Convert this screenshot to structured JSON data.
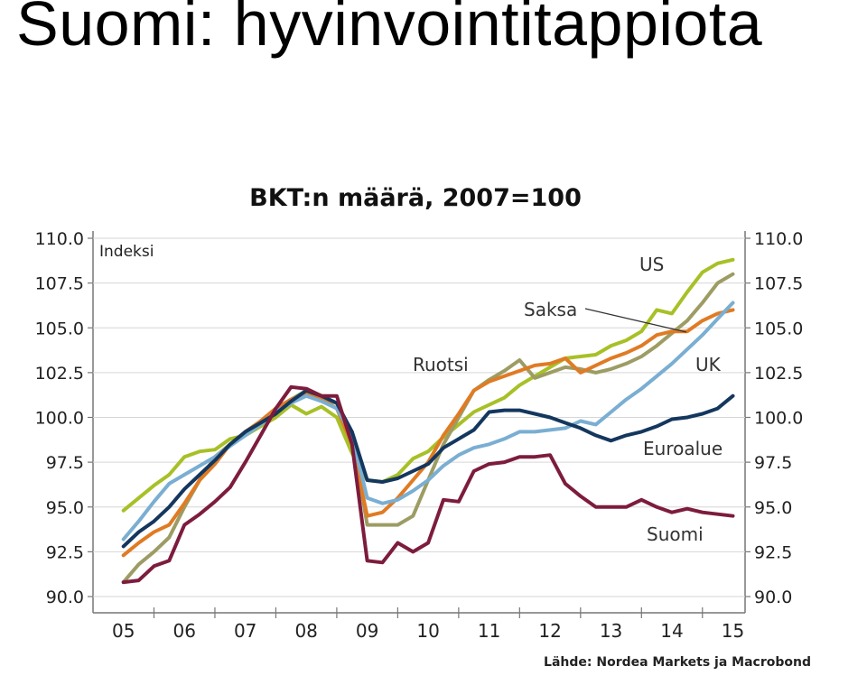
{
  "slide": {
    "title": "Suomi: hyvinvointitappiota"
  },
  "chart_data": {
    "type": "line",
    "title": "BKT:n määrä, 2007=100",
    "ylabel": "Indeksi",
    "source": "Lähde: Nordea Markets ja Macrobond",
    "ylim": [
      90.0,
      110.0
    ],
    "yticks": [
      "90.0",
      "92.5",
      "95.0",
      "97.5",
      "100.0",
      "102.5",
      "105.0",
      "107.5",
      "110.0"
    ],
    "xlim": [
      2004.5,
      2015.2
    ],
    "xtick_labels": [
      "05",
      "06",
      "07",
      "08",
      "09",
      "10",
      "11",
      "12",
      "13",
      "14",
      "15"
    ],
    "grid": true,
    "series": [
      {
        "name": "US",
        "color": "#a8c027",
        "x": [
          2005.0,
          2005.25,
          2005.5,
          2005.75,
          2006.0,
          2006.25,
          2006.5,
          2006.75,
          2007.0,
          2007.25,
          2007.5,
          2007.75,
          2008.0,
          2008.25,
          2008.5,
          2008.75,
          2009.0,
          2009.25,
          2009.5,
          2009.75,
          2010.0,
          2010.25,
          2010.5,
          2010.75,
          2011.0,
          2011.25,
          2011.5,
          2011.75,
          2012.0,
          2012.25,
          2012.5,
          2012.75,
          2013.0,
          2013.25,
          2013.5,
          2013.75,
          2014.0,
          2014.25,
          2014.5,
          2014.75,
          2015.0
        ],
        "y": [
          94.8,
          95.5,
          96.2,
          96.8,
          97.8,
          98.1,
          98.2,
          98.8,
          99.0,
          99.5,
          100.0,
          100.7,
          100.2,
          100.6,
          100.0,
          98.0,
          96.5,
          96.4,
          96.8,
          97.7,
          98.1,
          98.9,
          99.6,
          100.3,
          100.7,
          101.1,
          101.8,
          102.3,
          102.8,
          103.3,
          103.4,
          103.5,
          104.0,
          104.3,
          104.8,
          106.0,
          105.8,
          107.0,
          108.1,
          108.6,
          108.8
        ]
      },
      {
        "name": "Saksa",
        "color": "#9c9c64",
        "x": [
          2005.0,
          2005.25,
          2005.5,
          2005.75,
          2006.0,
          2006.25,
          2006.5,
          2006.75,
          2007.0,
          2007.25,
          2007.5,
          2007.75,
          2008.0,
          2008.25,
          2008.5,
          2008.75,
          2009.0,
          2009.25,
          2009.5,
          2009.75,
          2010.0,
          2010.25,
          2010.5,
          2010.75,
          2011.0,
          2011.25,
          2011.5,
          2011.75,
          2012.0,
          2012.25,
          2012.5,
          2012.75,
          2013.0,
          2013.25,
          2013.5,
          2013.75,
          2014.0,
          2014.25,
          2014.5,
          2014.75,
          2015.0
        ],
        "y": [
          90.8,
          91.8,
          92.5,
          93.3,
          95.0,
          96.5,
          97.8,
          98.5,
          99.0,
          99.8,
          100.5,
          101.0,
          101.5,
          101.0,
          100.8,
          99.0,
          94.0,
          94.0,
          94.0,
          94.5,
          96.5,
          98.5,
          100.0,
          101.5,
          102.1,
          102.6,
          103.2,
          102.2,
          102.5,
          102.8,
          102.7,
          102.5,
          102.7,
          103.0,
          103.4,
          104.0,
          104.7,
          105.4,
          106.4,
          107.5,
          108.0
        ]
      },
      {
        "name": "Ruotsi",
        "color": "#e07b24",
        "x": [
          2005.0,
          2005.25,
          2005.5,
          2005.75,
          2006.0,
          2006.25,
          2006.5,
          2006.75,
          2007.0,
          2007.25,
          2007.5,
          2007.75,
          2008.0,
          2008.25,
          2008.5,
          2008.75,
          2009.0,
          2009.25,
          2009.5,
          2009.75,
          2010.0,
          2010.25,
          2010.5,
          2010.75,
          2011.0,
          2011.25,
          2011.5,
          2011.75,
          2012.0,
          2012.25,
          2012.5,
          2012.75,
          2013.0,
          2013.25,
          2013.5,
          2013.75,
          2014.0,
          2014.25,
          2014.5,
          2014.75,
          2015.0
        ],
        "y": [
          92.3,
          93.0,
          93.6,
          94.0,
          95.2,
          96.5,
          97.4,
          98.5,
          99.2,
          99.8,
          100.5,
          101.0,
          101.3,
          101.0,
          100.5,
          98.5,
          94.5,
          94.7,
          95.5,
          96.5,
          97.5,
          99.0,
          100.2,
          101.5,
          102.0,
          102.3,
          102.6,
          102.9,
          103.0,
          103.3,
          102.5,
          102.9,
          103.3,
          103.6,
          104.0,
          104.6,
          104.8,
          104.8,
          105.4,
          105.8,
          106.0
        ]
      },
      {
        "name": "UK",
        "color": "#7aaed2",
        "x": [
          2005.0,
          2005.25,
          2005.5,
          2005.75,
          2006.0,
          2006.25,
          2006.5,
          2006.75,
          2007.0,
          2007.25,
          2007.5,
          2007.75,
          2008.0,
          2008.25,
          2008.5,
          2008.75,
          2009.0,
          2009.25,
          2009.5,
          2009.75,
          2010.0,
          2010.25,
          2010.5,
          2010.75,
          2011.0,
          2011.25,
          2011.5,
          2011.75,
          2012.0,
          2012.25,
          2012.5,
          2012.75,
          2013.0,
          2013.25,
          2013.5,
          2013.75,
          2014.0,
          2014.25,
          2014.5,
          2014.75,
          2015.0
        ],
        "y": [
          93.2,
          94.2,
          95.3,
          96.3,
          96.8,
          97.3,
          97.8,
          98.4,
          99.0,
          99.6,
          100.3,
          100.8,
          101.2,
          100.9,
          100.5,
          99.0,
          95.5,
          95.2,
          95.4,
          95.9,
          96.5,
          97.3,
          97.9,
          98.3,
          98.5,
          98.8,
          99.2,
          99.2,
          99.3,
          99.4,
          99.8,
          99.6,
          100.3,
          101.0,
          101.6,
          102.3,
          103.0,
          103.8,
          104.6,
          105.5,
          106.4
        ]
      },
      {
        "name": "Euroalue",
        "color": "#14375e",
        "x": [
          2005.0,
          2005.25,
          2005.5,
          2005.75,
          2006.0,
          2006.25,
          2006.5,
          2006.75,
          2007.0,
          2007.25,
          2007.5,
          2007.75,
          2008.0,
          2008.25,
          2008.5,
          2008.75,
          2009.0,
          2009.25,
          2009.5,
          2009.75,
          2010.0,
          2010.25,
          2010.5,
          2010.75,
          2011.0,
          2011.25,
          2011.5,
          2011.75,
          2012.0,
          2012.25,
          2012.5,
          2012.75,
          2013.0,
          2013.25,
          2013.5,
          2013.75,
          2014.0,
          2014.25,
          2014.5,
          2014.75,
          2015.0
        ],
        "y": [
          92.8,
          93.6,
          94.2,
          95.0,
          96.0,
          96.8,
          97.6,
          98.5,
          99.2,
          99.7,
          100.2,
          100.9,
          101.5,
          101.2,
          100.8,
          99.2,
          96.5,
          96.4,
          96.6,
          97.0,
          97.4,
          98.3,
          98.8,
          99.3,
          100.3,
          100.4,
          100.4,
          100.2,
          100.0,
          99.7,
          99.4,
          99.0,
          98.7,
          99.0,
          99.2,
          99.5,
          99.9,
          100.0,
          100.2,
          100.5,
          101.2
        ]
      },
      {
        "name": "Suomi",
        "color": "#7d1c3d",
        "x": [
          2005.0,
          2005.25,
          2005.5,
          2005.75,
          2006.0,
          2006.25,
          2006.5,
          2006.75,
          2007.0,
          2007.25,
          2007.5,
          2007.75,
          2008.0,
          2008.25,
          2008.5,
          2008.75,
          2009.0,
          2009.25,
          2009.5,
          2009.75,
          2010.0,
          2010.25,
          2010.5,
          2010.75,
          2011.0,
          2011.25,
          2011.5,
          2011.75,
          2012.0,
          2012.25,
          2012.5,
          2012.75,
          2013.0,
          2013.25,
          2013.5,
          2013.75,
          2014.0,
          2014.25,
          2014.5,
          2014.75,
          2015.0
        ],
        "y": [
          90.8,
          90.9,
          91.7,
          92.0,
          94.0,
          94.6,
          95.3,
          96.1,
          97.5,
          99.0,
          100.5,
          101.7,
          101.6,
          101.2,
          101.2,
          98.5,
          92.0,
          91.9,
          93.0,
          92.5,
          93.0,
          95.4,
          95.3,
          97.0,
          97.4,
          97.5,
          97.8,
          97.8,
          97.9,
          96.3,
          95.6,
          95.0,
          95.0,
          95.0,
          95.4,
          95.0,
          94.7,
          94.9,
          94.7,
          94.6,
          94.5
        ]
      }
    ],
    "annotations": [
      {
        "text": "US"
      },
      {
        "text": "Saksa"
      },
      {
        "text": "Ruotsi"
      },
      {
        "text": "UK"
      },
      {
        "text": "Euroalue"
      },
      {
        "text": "Suomi"
      }
    ]
  }
}
